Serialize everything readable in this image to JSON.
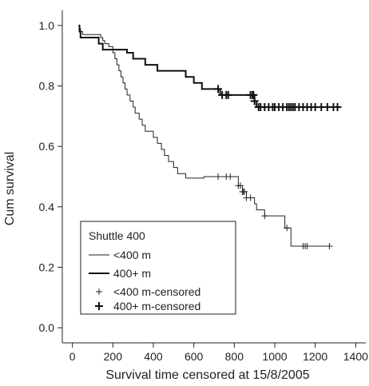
{
  "chart_data": {
    "type": "line",
    "subtype": "kaplan-meier",
    "title": "",
    "xlabel": "Survival time censored at 15/8/2005",
    "ylabel": "Cum survival",
    "xlim": [
      -50,
      1450
    ],
    "ylim": [
      -0.05,
      1.05
    ],
    "xticks": [
      0,
      200,
      400,
      600,
      800,
      1000,
      1200,
      1400
    ],
    "yticks": [
      0.0,
      0.2,
      0.4,
      0.6,
      0.8,
      1.0
    ],
    "xtick_labels": [
      "0",
      "200",
      "400",
      "600",
      "800",
      "1000",
      "1200",
      "1400"
    ],
    "ytick_labels": [
      "0.0",
      "0.2",
      "0.4",
      "0.6",
      "0.8",
      "1.0"
    ],
    "grid": false,
    "legend": {
      "position": "bottom-left",
      "title": "Shuttle 400",
      "entries": [
        "<400 m",
        "400+ m",
        "<400 m-censored",
        "400+ m-censored"
      ]
    },
    "series": [
      {
        "name": "<400 m",
        "style": "thin",
        "color": "#222222",
        "steps": [
          [
            30,
            1.0
          ],
          [
            35,
            0.99
          ],
          [
            40,
            0.98
          ],
          [
            50,
            0.97
          ],
          [
            140,
            0.96
          ],
          [
            150,
            0.95
          ],
          [
            160,
            0.94
          ],
          [
            180,
            0.93
          ],
          [
            200,
            0.91
          ],
          [
            210,
            0.89
          ],
          [
            220,
            0.87
          ],
          [
            230,
            0.85
          ],
          [
            240,
            0.83
          ],
          [
            250,
            0.81
          ],
          [
            260,
            0.79
          ],
          [
            270,
            0.77
          ],
          [
            285,
            0.75
          ],
          [
            300,
            0.73
          ],
          [
            310,
            0.71
          ],
          [
            330,
            0.69
          ],
          [
            345,
            0.67
          ],
          [
            360,
            0.65
          ],
          [
            400,
            0.63
          ],
          [
            420,
            0.61
          ],
          [
            440,
            0.59
          ],
          [
            455,
            0.57
          ],
          [
            475,
            0.55
          ],
          [
            500,
            0.53
          ],
          [
            520,
            0.51
          ],
          [
            560,
            0.495
          ],
          [
            640,
            0.495
          ],
          [
            650,
            0.5
          ],
          [
            820,
            0.47
          ],
          [
            840,
            0.45
          ],
          [
            860,
            0.43
          ],
          [
            900,
            0.41
          ],
          [
            910,
            0.39
          ],
          [
            950,
            0.37
          ],
          [
            1050,
            0.33
          ],
          [
            1080,
            0.27
          ],
          [
            1280,
            0.27
          ]
        ],
        "censored": [
          720,
          760,
          780,
          820,
          830,
          840,
          845,
          850,
          860,
          880,
          950,
          1060,
          1140,
          1150,
          1160,
          1270
        ]
      },
      {
        "name": "400+ m",
        "style": "thick",
        "color": "#111111",
        "steps": [
          [
            30,
            1.0
          ],
          [
            35,
            0.98
          ],
          [
            40,
            0.96
          ],
          [
            130,
            0.94
          ],
          [
            150,
            0.92
          ],
          [
            270,
            0.91
          ],
          [
            300,
            0.89
          ],
          [
            360,
            0.87
          ],
          [
            420,
            0.85
          ],
          [
            560,
            0.83
          ],
          [
            600,
            0.81
          ],
          [
            640,
            0.79
          ],
          [
            730,
            0.77
          ],
          [
            900,
            0.75
          ],
          [
            910,
            0.73
          ],
          [
            1320,
            0.73
          ]
        ],
        "censored": [
          720,
          740,
          760,
          770,
          880,
          890,
          895,
          900,
          920,
          930,
          950,
          970,
          990,
          1000,
          1020,
          1040,
          1060,
          1070,
          1080,
          1090,
          1100,
          1120,
          1140,
          1160,
          1180,
          1200,
          1230,
          1260,
          1290,
          1310
        ]
      }
    ]
  }
}
